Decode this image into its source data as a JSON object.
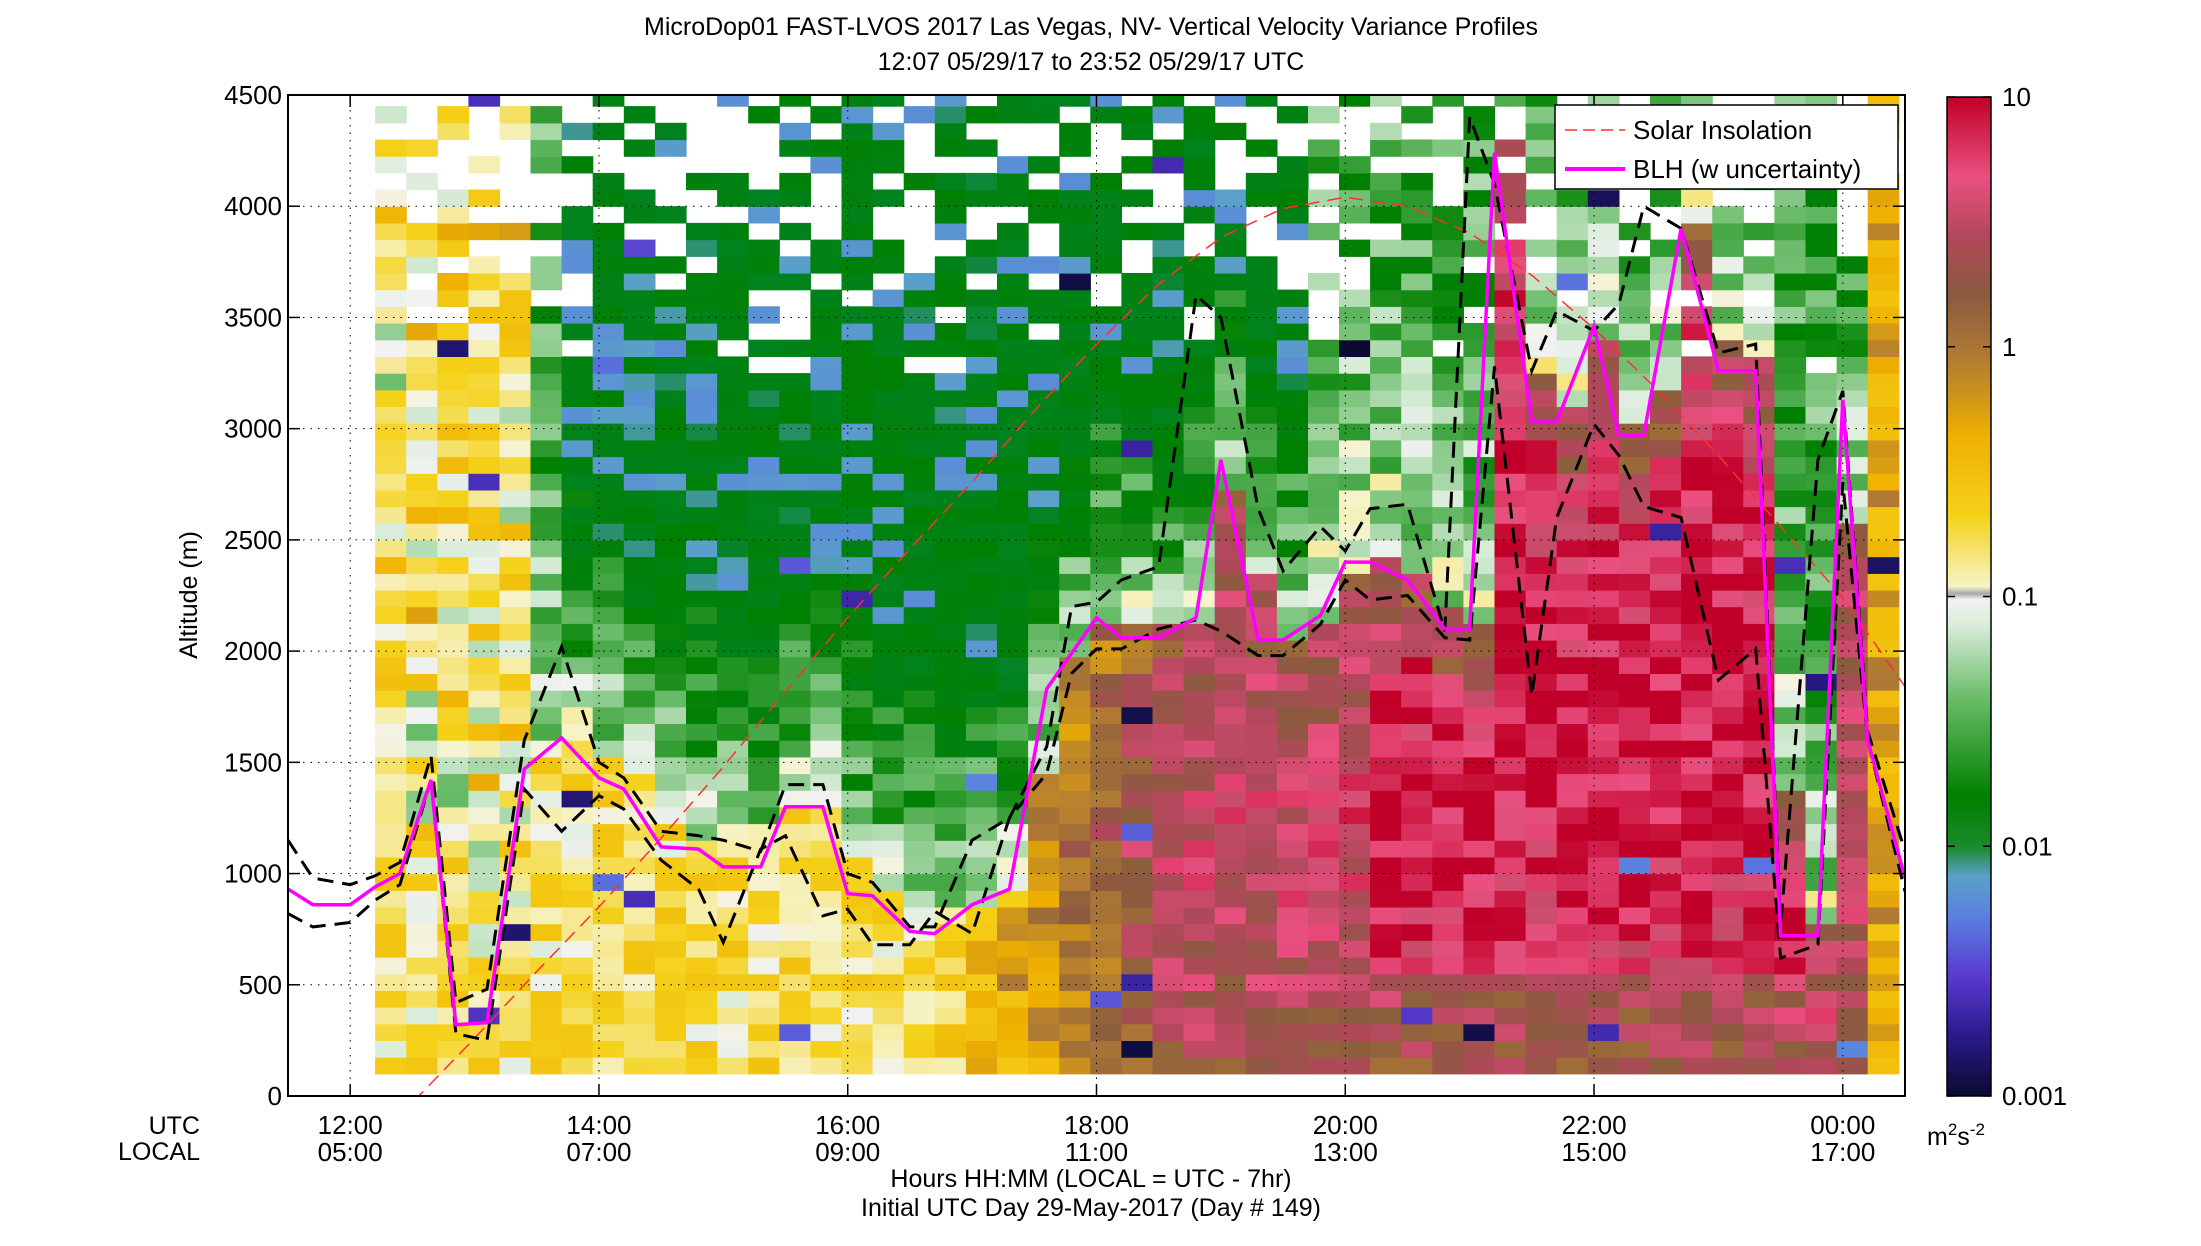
{
  "chart_data": {
    "type": "heatmap",
    "title": "MicroDop01 FAST-LVOS 2017 Las Vegas, NV- Vertical Velocity Variance Profiles",
    "subtitle": "12:07 05/29/17 to 23:52 05/29/17  UTC",
    "ylabel": "Altitude (m)",
    "xlabel": "Hours HH:MM  (LOCAL = UTC - 7hr)",
    "xlabel2": "Initial UTC Day 29-May-2017 (Day # 149)",
    "x_row_labels": [
      "UTC",
      "LOCAL"
    ],
    "xlim_hours_utc": [
      11.5,
      24.5
    ],
    "ylim": [
      0,
      4500
    ],
    "x_ticks": [
      {
        "hour": 12,
        "utc": "12:00",
        "local": "05:00"
      },
      {
        "hour": 14,
        "utc": "14:00",
        "local": "07:00"
      },
      {
        "hour": 16,
        "utc": "16:00",
        "local": "09:00"
      },
      {
        "hour": 18,
        "utc": "18:00",
        "local": "11:00"
      },
      {
        "hour": 20,
        "utc": "20:00",
        "local": "13:00"
      },
      {
        "hour": 22,
        "utc": "22:00",
        "local": "15:00"
      },
      {
        "hour": 24,
        "utc": "00:00",
        "local": "17:00"
      }
    ],
    "y_ticks": [
      0,
      500,
      1000,
      1500,
      2000,
      2500,
      3000,
      3500,
      4000,
      4500
    ],
    "grid": true,
    "legend_position": "top-right",
    "colorbar": {
      "scale": "log",
      "range": [
        0.001,
        10
      ],
      "tick_values": [
        0.001,
        0.01,
        0.1,
        1,
        10
      ],
      "tick_labels": [
        "0.001",
        "0.01",
        "0.1",
        "1",
        "10"
      ],
      "unit_label": "m",
      "unit_sup1": "2",
      "unit_mid": "s",
      "unit_sup2": "-2"
    },
    "heatmap_grid": {
      "x_start_hour": 12.2,
      "x_step_hours": 0.25,
      "columns": 49,
      "alt_start_m": 100,
      "alt_step_m": 75,
      "rows": 59
    },
    "series": [
      {
        "name": "Solar Insolation",
        "color": "#ff3030",
        "style": "dashed",
        "x_hours": [
          12.0,
          12.5,
          13.0,
          13.5,
          14.0,
          14.5,
          15.0,
          15.5,
          16.0,
          16.5,
          17.0,
          17.5,
          18.0,
          18.5,
          19.0,
          19.5,
          20.0,
          20.5,
          21.0,
          21.5,
          22.0,
          22.5,
          23.0,
          23.5,
          24.0,
          24.5
        ],
        "y": [
          -300,
          -30,
          260,
          560,
          850,
          1160,
          1480,
          1820,
          2150,
          2460,
          2760,
          3080,
          3380,
          3650,
          3860,
          3990,
          4040,
          4000,
          3880,
          3690,
          3450,
          3180,
          2880,
          2560,
          2240,
          1840
        ]
      },
      {
        "name": "BLH (w uncertainty)",
        "color": "#ff00ff",
        "x_hours": [
          11.5,
          11.7,
          12.0,
          12.2,
          12.4,
          12.65,
          12.85,
          13.1,
          13.4,
          13.7,
          14.0,
          14.2,
          14.5,
          14.8,
          15.0,
          15.3,
          15.5,
          15.8,
          16.0,
          16.2,
          16.5,
          16.7,
          17.0,
          17.3,
          17.6,
          18.0,
          18.2,
          18.5,
          18.8,
          19.0,
          19.3,
          19.5,
          19.8,
          20.0,
          20.2,
          20.5,
          20.8,
          21.0,
          21.2,
          21.5,
          21.7,
          22.0,
          22.2,
          22.4,
          22.7,
          23.0,
          23.3,
          23.5,
          23.8,
          24.0,
          24.2,
          24.5
        ],
        "y": [
          930,
          860,
          860,
          940,
          1000,
          1420,
          320,
          330,
          1470,
          1610,
          1430,
          1380,
          1120,
          1110,
          1030,
          1030,
          1300,
          1300,
          910,
          900,
          740,
          730,
          860,
          930,
          1830,
          2150,
          2060,
          2060,
          2150,
          2860,
          2050,
          2050,
          2160,
          2400,
          2400,
          2320,
          2100,
          2100,
          4240,
          3030,
          3030,
          3460,
          2970,
          2970,
          3900,
          3260,
          3260,
          720,
          720,
          3130,
          1600,
          980
        ]
      },
      {
        "name": "",
        "color": "#000000",
        "style": "dashed",
        "x_hours": [
          11.5,
          11.7,
          12.0,
          12.2,
          12.4,
          12.65,
          12.85,
          13.1,
          13.4,
          13.7,
          14.0,
          14.2,
          14.5,
          14.8,
          15.0,
          15.3,
          15.5,
          15.8,
          16.0,
          16.2,
          16.5,
          16.7,
          17.0,
          17.3,
          17.6,
          17.8,
          18.0,
          18.2,
          18.5,
          18.8,
          19.0,
          19.3,
          19.5,
          19.8,
          20.0,
          20.2,
          20.5,
          20.8,
          21.0,
          21.2,
          21.5,
          21.7,
          22.0,
          22.2,
          22.4,
          22.7,
          23.0,
          23.3,
          23.5,
          23.8,
          24.0,
          24.2,
          24.5
        ],
        "y": [
          1150,
          980,
          950,
          990,
          1050,
          1530,
          420,
          480,
          1600,
          2020,
          1500,
          1430,
          1190,
          1170,
          1150,
          1100,
          1400,
          1400,
          1000,
          960,
          760,
          760,
          1150,
          1250,
          1570,
          2200,
          2220,
          2320,
          2380,
          3600,
          3500,
          2640,
          2360,
          2560,
          2450,
          2640,
          2660,
          2090,
          4400,
          4100,
          3260,
          3530,
          3440,
          3560,
          4000,
          3900,
          3340,
          3380,
          760,
          2860,
          3170,
          1640,
          1100
        ]
      },
      {
        "name": "",
        "color": "#000000",
        "style": "dashed",
        "x_hours": [
          11.5,
          11.7,
          12.0,
          12.2,
          12.4,
          12.65,
          12.85,
          13.1,
          13.4,
          13.7,
          14.0,
          14.2,
          14.5,
          14.8,
          15.0,
          15.3,
          15.5,
          15.8,
          16.0,
          16.2,
          16.5,
          16.7,
          17.0,
          17.3,
          17.6,
          17.8,
          18.0,
          18.2,
          18.5,
          18.8,
          19.0,
          19.3,
          19.5,
          19.8,
          20.0,
          20.2,
          20.5,
          20.8,
          21.0,
          21.2,
          21.5,
          21.7,
          22.0,
          22.2,
          22.4,
          22.7,
          23.0,
          23.3,
          23.5,
          23.8,
          24.0,
          24.2,
          24.5
        ],
        "y": [
          820,
          760,
          780,
          880,
          950,
          1420,
          280,
          250,
          1380,
          1190,
          1350,
          1290,
          1060,
          930,
          690,
          1110,
          1170,
          810,
          840,
          680,
          680,
          830,
          730,
          1250,
          1450,
          1900,
          2010,
          2010,
          2100,
          2140,
          2090,
          1980,
          1980,
          2120,
          2320,
          2230,
          2250,
          2060,
          2050,
          3280,
          1800,
          2600,
          3020,
          2880,
          2650,
          2600,
          1870,
          2010,
          620,
          680,
          2760,
          1600,
          920
        ]
      }
    ]
  }
}
